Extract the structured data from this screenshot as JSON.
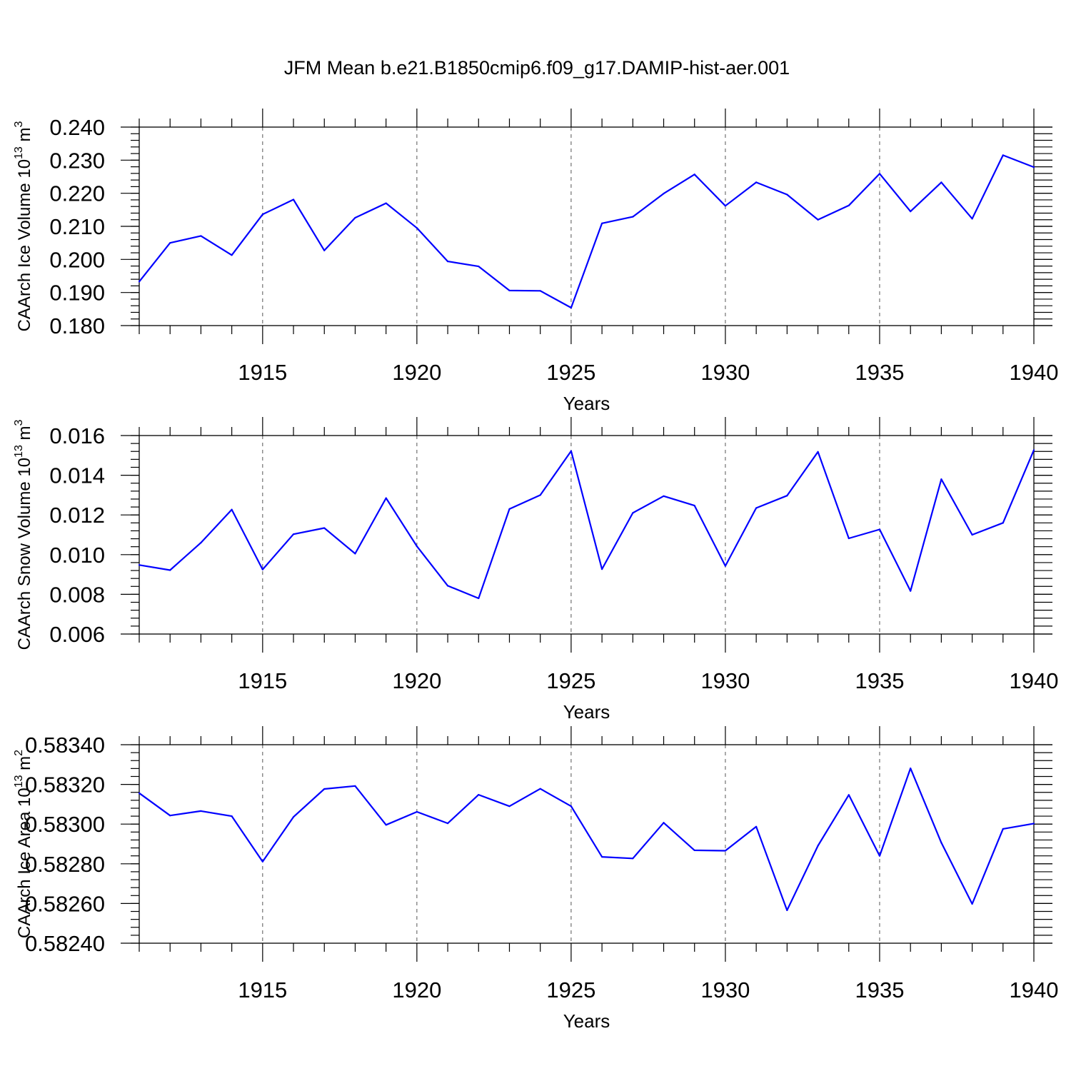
{
  "figure_title": "JFM Mean b.e21.B1850cmip6.f09_g17.DAMIP-hist-aer.001",
  "colors": {
    "series": "#0000ff",
    "axes": "#000000"
  },
  "chart_data": [
    {
      "type": "line",
      "name": "ice-volume",
      "ylabel": "CAArch Ice Volume 10",
      "ylabel_sup1": "13",
      "ylabel_mid": " m",
      "ylabel_sup2": "3",
      "xlabel": "Years",
      "xlim": [
        1911,
        1940
      ],
      "ylim": [
        0.18,
        0.24
      ],
      "xticks": [
        1915,
        1920,
        1925,
        1930,
        1935,
        1940
      ],
      "yticks": [
        "0.180",
        "0.190",
        "0.200",
        "0.210",
        "0.220",
        "0.230",
        "0.240"
      ],
      "yminor": 0.002,
      "x": [
        1911,
        1912,
        1913,
        1914,
        1915,
        1916,
        1917,
        1918,
        1919,
        1920,
        1921,
        1922,
        1923,
        1924,
        1925,
        1926,
        1927,
        1928,
        1929,
        1930,
        1931,
        1932,
        1933,
        1934,
        1935,
        1936,
        1937,
        1938,
        1939,
        1940
      ],
      "values": [
        0.1933,
        0.205,
        0.2071,
        0.2013,
        0.2136,
        0.2181,
        0.2027,
        0.2126,
        0.217,
        0.2095,
        0.1994,
        0.1979,
        0.1906,
        0.1905,
        0.1854,
        0.2109,
        0.2129,
        0.2199,
        0.2257,
        0.2162,
        0.2233,
        0.2196,
        0.212,
        0.2163,
        0.2259,
        0.2145,
        0.2233,
        0.2123,
        0.2315,
        0.2279
      ]
    },
    {
      "type": "line",
      "name": "snow-volume",
      "ylabel": "CAArch Snow Volume 10",
      "ylabel_sup1": "13",
      "ylabel_mid": " m",
      "ylabel_sup2": "3",
      "xlabel": "Years",
      "xlim": [
        1911,
        1940
      ],
      "ylim": [
        0.006,
        0.016
      ],
      "xticks": [
        1915,
        1920,
        1925,
        1930,
        1935,
        1940
      ],
      "yticks": [
        "0.006",
        "0.008",
        "0.010",
        "0.012",
        "0.014",
        "0.016"
      ],
      "yminor": 0.0004,
      "x": [
        1911,
        1912,
        1913,
        1914,
        1915,
        1916,
        1917,
        1918,
        1919,
        1920,
        1921,
        1922,
        1923,
        1924,
        1925,
        1926,
        1927,
        1928,
        1929,
        1930,
        1931,
        1932,
        1933,
        1934,
        1935,
        1936,
        1937,
        1938,
        1939,
        1940
      ],
      "values": [
        0.00948,
        0.00922,
        0.0106,
        0.01227,
        0.00925,
        0.01103,
        0.01134,
        0.01005,
        0.01285,
        0.01042,
        0.00843,
        0.0078,
        0.0123,
        0.013,
        0.01522,
        0.00927,
        0.0121,
        0.01295,
        0.01247,
        0.00943,
        0.01235,
        0.01297,
        0.01518,
        0.01082,
        0.01127,
        0.00817,
        0.0138,
        0.011,
        0.0116,
        0.01527
      ]
    },
    {
      "type": "line",
      "name": "ice-area",
      "ylabel": "CAArch Ice Area 10",
      "ylabel_sup1": "13",
      "ylabel_mid": " m",
      "ylabel_sup2": "2",
      "xlabel": "Years",
      "xlim": [
        1911,
        1940
      ],
      "ylim": [
        0.5824,
        0.5834
      ],
      "xticks": [
        1915,
        1920,
        1925,
        1930,
        1935,
        1940
      ],
      "yticks": [
        "0.58240",
        "0.58260",
        "0.58280",
        "0.58300",
        "0.58320",
        "0.58340"
      ],
      "yminor": 4e-05,
      "x": [
        1911,
        1912,
        1913,
        1914,
        1915,
        1916,
        1917,
        1918,
        1919,
        1920,
        1921,
        1922,
        1923,
        1924,
        1925,
        1926,
        1927,
        1928,
        1929,
        1930,
        1931,
        1932,
        1933,
        1934,
        1935,
        1936,
        1937,
        1938,
        1939,
        1940
      ],
      "values": [
        0.583156,
        0.583043,
        0.583066,
        0.58304,
        0.582811,
        0.583036,
        0.583177,
        0.583192,
        0.582996,
        0.583062,
        0.583004,
        0.583148,
        0.58309,
        0.583178,
        0.58309,
        0.582835,
        0.582827,
        0.583007,
        0.582868,
        0.582866,
        0.582987,
        0.582566,
        0.582891,
        0.583147,
        0.58284,
        0.583281,
        0.582906,
        0.582598,
        0.582976,
        0.583003
      ]
    }
  ]
}
